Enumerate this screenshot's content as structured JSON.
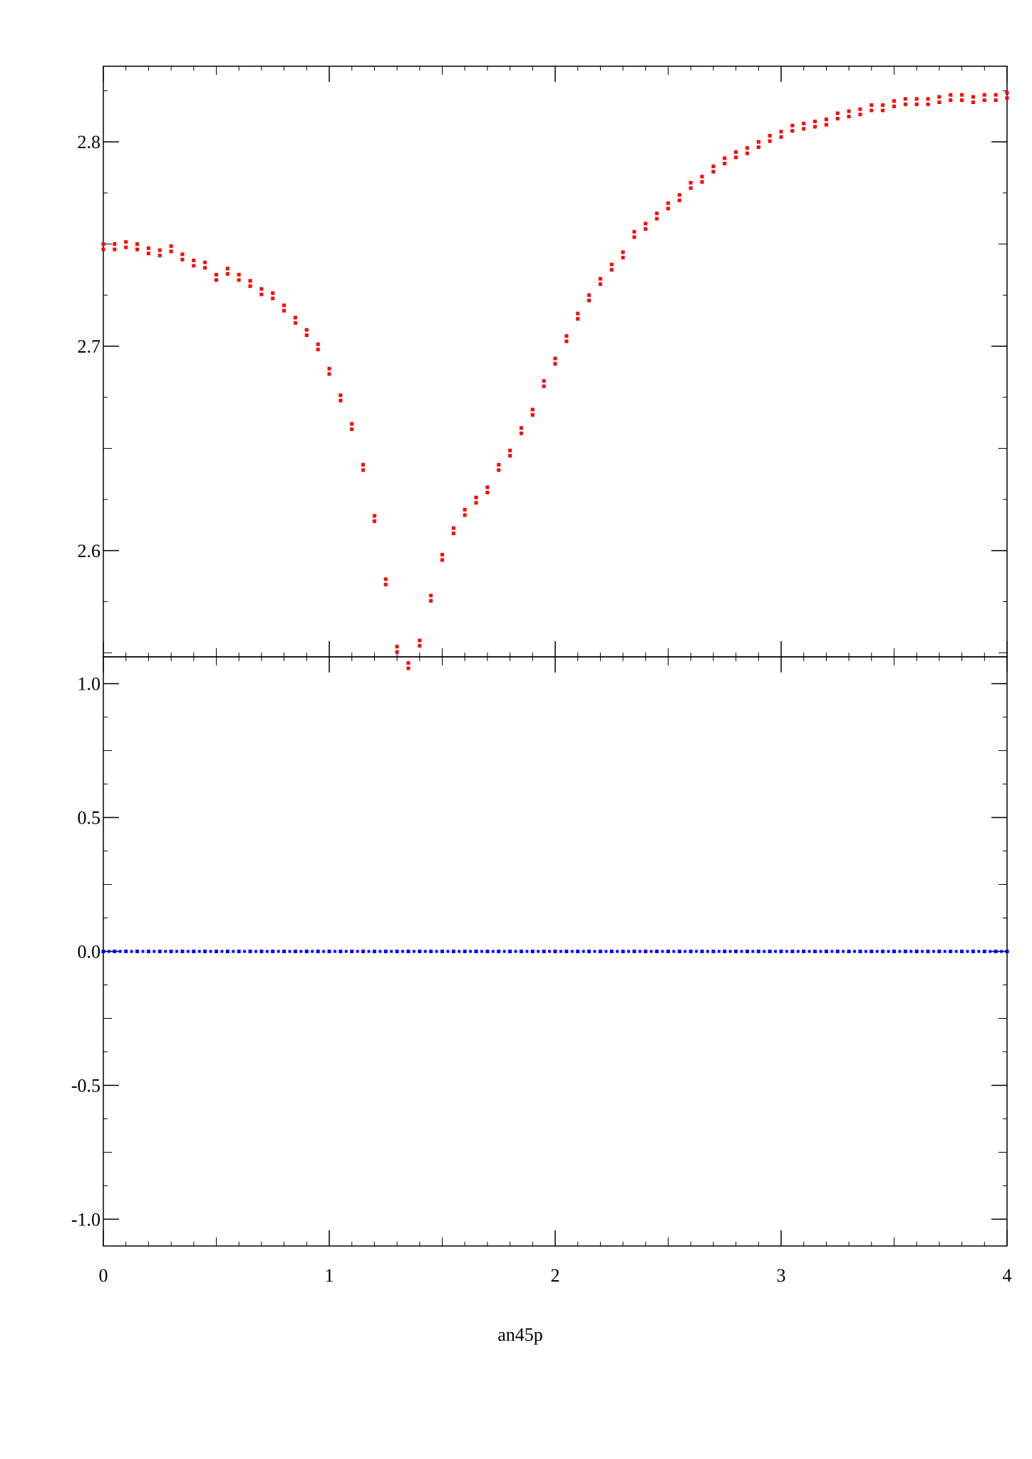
{
  "caption": "an45p",
  "chart_data": [
    {
      "type": "scatter",
      "panel": "top",
      "xlim": [
        0,
        4
      ],
      "ylim": [
        2.548,
        2.837
      ],
      "x_ticks": [
        0,
        1,
        2,
        3,
        4
      ],
      "y_ticks": [
        2.6,
        2.7,
        2.8
      ],
      "y_tick_labels": [
        "2.6",
        "2.7",
        "2.8"
      ],
      "grid": false,
      "series_color": "#ff0000",
      "points": [
        [
          0.0,
          2.75
        ],
        [
          0.05,
          2.75
        ],
        [
          0.1,
          2.751
        ],
        [
          0.15,
          2.75
        ],
        [
          0.2,
          2.748
        ],
        [
          0.25,
          2.747
        ],
        [
          0.3,
          2.749
        ],
        [
          0.35,
          2.745
        ],
        [
          0.4,
          2.742
        ],
        [
          0.45,
          2.741
        ],
        [
          0.5,
          2.735
        ],
        [
          0.55,
          2.738
        ],
        [
          0.6,
          2.735
        ],
        [
          0.65,
          2.732
        ],
        [
          0.7,
          2.728
        ],
        [
          0.75,
          2.726
        ],
        [
          0.8,
          2.72
        ],
        [
          0.85,
          2.714
        ],
        [
          0.9,
          2.708
        ],
        [
          0.95,
          2.701
        ],
        [
          1.0,
          2.689
        ],
        [
          1.05,
          2.676
        ],
        [
          1.1,
          2.662
        ],
        [
          1.15,
          2.642
        ],
        [
          1.2,
          2.617
        ],
        [
          1.25,
          2.586
        ],
        [
          1.3,
          2.553
        ],
        [
          1.35,
          2.545
        ],
        [
          1.4,
          2.556
        ],
        [
          1.45,
          2.578
        ],
        [
          1.5,
          2.598
        ],
        [
          1.55,
          2.611
        ],
        [
          1.6,
          2.62
        ],
        [
          1.65,
          2.626
        ],
        [
          1.7,
          2.631
        ],
        [
          1.75,
          2.642
        ],
        [
          1.8,
          2.649
        ],
        [
          1.85,
          2.66
        ],
        [
          1.9,
          2.669
        ],
        [
          1.95,
          2.683
        ],
        [
          2.0,
          2.694
        ],
        [
          2.05,
          2.705
        ],
        [
          2.1,
          2.716
        ],
        [
          2.15,
          2.725
        ],
        [
          2.2,
          2.733
        ],
        [
          2.25,
          2.74
        ],
        [
          2.3,
          2.746
        ],
        [
          2.35,
          2.756
        ],
        [
          2.4,
          2.76
        ],
        [
          2.45,
          2.765
        ],
        [
          2.5,
          2.77
        ],
        [
          2.55,
          2.774
        ],
        [
          2.6,
          2.78
        ],
        [
          2.65,
          2.783
        ],
        [
          2.7,
          2.788
        ],
        [
          2.75,
          2.792
        ],
        [
          2.8,
          2.795
        ],
        [
          2.85,
          2.797
        ],
        [
          2.9,
          2.8
        ],
        [
          2.95,
          2.803
        ],
        [
          3.0,
          2.805
        ],
        [
          3.05,
          2.808
        ],
        [
          3.1,
          2.809
        ],
        [
          3.15,
          2.81
        ],
        [
          3.2,
          2.811
        ],
        [
          3.25,
          2.814
        ],
        [
          3.3,
          2.815
        ],
        [
          3.35,
          2.816
        ],
        [
          3.4,
          2.818
        ],
        [
          3.45,
          2.818
        ],
        [
          3.5,
          2.82
        ],
        [
          3.55,
          2.821
        ],
        [
          3.6,
          2.821
        ],
        [
          3.65,
          2.821
        ],
        [
          3.7,
          2.822
        ],
        [
          3.75,
          2.823
        ],
        [
          3.8,
          2.823
        ],
        [
          3.85,
          2.822
        ],
        [
          3.9,
          2.823
        ],
        [
          3.95,
          2.823
        ],
        [
          4.0,
          2.824
        ]
      ]
    },
    {
      "type": "scatter",
      "panel": "bottom",
      "xlim": [
        0,
        4
      ],
      "ylim": [
        -1.1,
        1.1
      ],
      "x_ticks": [
        0,
        1,
        2,
        3,
        4
      ],
      "x_tick_labels": [
        "0",
        "1",
        "2",
        "3",
        "4"
      ],
      "y_ticks": [
        -1.0,
        -0.5,
        0.0,
        0.5,
        1.0
      ],
      "y_tick_labels": [
        "-1.0",
        "-0.5",
        "0.0",
        "0.5",
        "1.0"
      ],
      "grid": false,
      "series_color": "#0000ff",
      "points": [
        [
          0.0,
          0.0
        ],
        [
          0.05,
          0.0
        ],
        [
          0.1,
          0.0
        ],
        [
          0.15,
          0.0
        ],
        [
          0.2,
          0.0
        ],
        [
          0.25,
          0.0
        ],
        [
          0.3,
          0.0
        ],
        [
          0.35,
          0.0
        ],
        [
          0.4,
          0.0
        ],
        [
          0.45,
          0.0
        ],
        [
          0.5,
          0.0
        ],
        [
          0.55,
          0.0
        ],
        [
          0.6,
          0.0
        ],
        [
          0.65,
          0.0
        ],
        [
          0.7,
          0.0
        ],
        [
          0.75,
          0.0
        ],
        [
          0.8,
          0.0
        ],
        [
          0.85,
          0.0
        ],
        [
          0.9,
          0.0
        ],
        [
          0.95,
          0.0
        ],
        [
          1.0,
          0.0
        ],
        [
          1.05,
          0.0
        ],
        [
          1.1,
          0.0
        ],
        [
          1.15,
          0.0
        ],
        [
          1.2,
          0.0
        ],
        [
          1.25,
          0.0
        ],
        [
          1.3,
          0.0
        ],
        [
          1.35,
          0.0
        ],
        [
          1.4,
          0.0
        ],
        [
          1.45,
          0.0
        ],
        [
          1.5,
          0.0
        ],
        [
          1.55,
          0.0
        ],
        [
          1.6,
          0.0
        ],
        [
          1.65,
          0.0
        ],
        [
          1.7,
          0.0
        ],
        [
          1.75,
          0.0
        ],
        [
          1.8,
          0.0
        ],
        [
          1.85,
          0.0
        ],
        [
          1.9,
          0.0
        ],
        [
          1.95,
          0.0
        ],
        [
          2.0,
          0.0
        ],
        [
          2.05,
          0.0
        ],
        [
          2.1,
          0.0
        ],
        [
          2.15,
          0.0
        ],
        [
          2.2,
          0.0
        ],
        [
          2.25,
          0.0
        ],
        [
          2.3,
          0.0
        ],
        [
          2.35,
          0.0
        ],
        [
          2.4,
          0.0
        ],
        [
          2.45,
          0.0
        ],
        [
          2.5,
          0.0
        ],
        [
          2.55,
          0.0
        ],
        [
          2.6,
          0.0
        ],
        [
          2.65,
          0.0
        ],
        [
          2.7,
          0.0
        ],
        [
          2.75,
          0.0
        ],
        [
          2.8,
          0.0
        ],
        [
          2.85,
          0.0
        ],
        [
          2.9,
          0.0
        ],
        [
          2.95,
          0.0
        ],
        [
          3.0,
          0.0
        ],
        [
          3.05,
          0.0
        ],
        [
          3.1,
          0.0
        ],
        [
          3.15,
          0.0
        ],
        [
          3.2,
          0.0
        ],
        [
          3.25,
          0.0
        ],
        [
          3.3,
          0.0
        ],
        [
          3.35,
          0.0
        ],
        [
          3.4,
          0.0
        ],
        [
          3.45,
          0.0
        ],
        [
          3.5,
          0.0
        ],
        [
          3.55,
          0.0
        ],
        [
          3.6,
          0.0
        ],
        [
          3.65,
          0.0
        ],
        [
          3.7,
          0.0
        ],
        [
          3.75,
          0.0
        ],
        [
          3.8,
          0.0
        ],
        [
          3.85,
          0.0
        ],
        [
          3.9,
          0.0
        ],
        [
          3.95,
          0.0
        ],
        [
          4.0,
          0.0
        ]
      ]
    }
  ]
}
